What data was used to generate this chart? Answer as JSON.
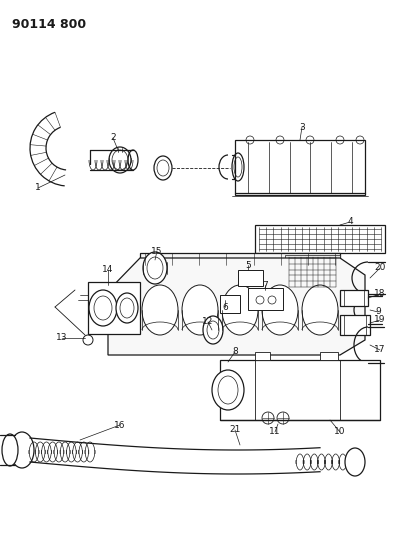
{
  "title": "90114 800",
  "bg": "#ffffff",
  "lc": "#1a1a1a",
  "fig_w": 3.98,
  "fig_h": 5.33,
  "dpi": 100,
  "title_fontsize": 9,
  "label_fontsize": 6.5
}
